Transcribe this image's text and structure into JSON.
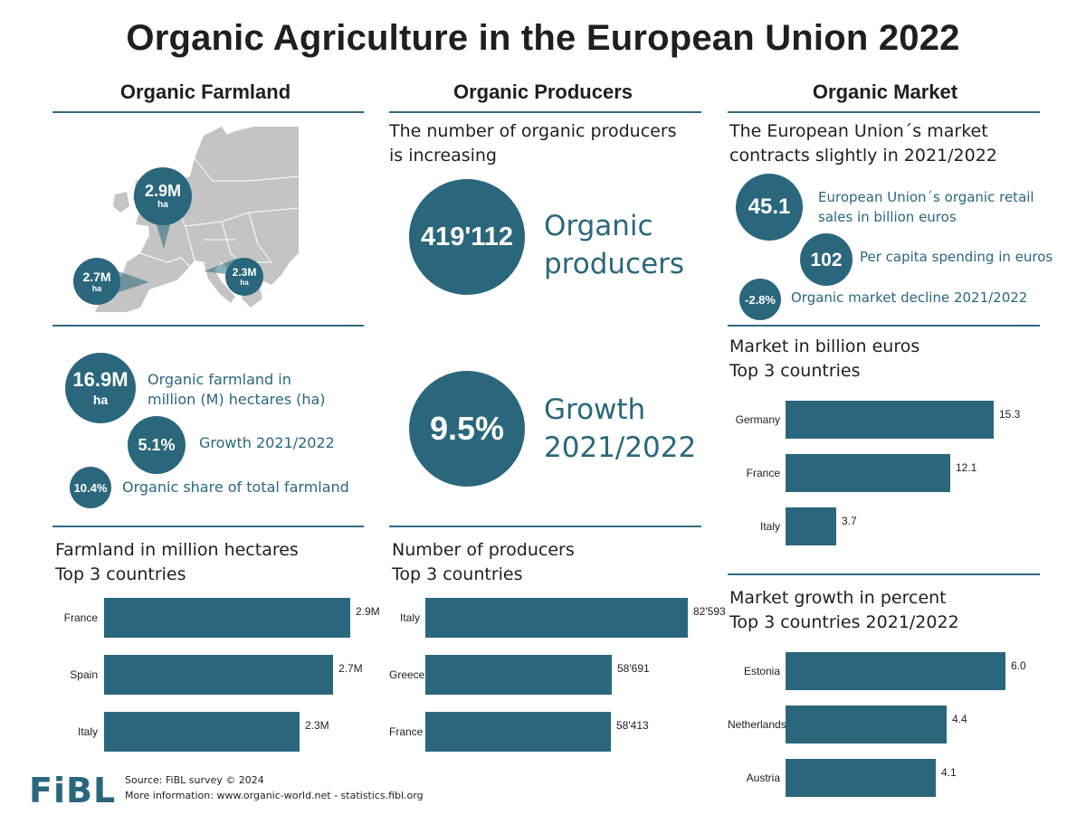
{
  "title": "Organic Agriculture in the European Union 2022",
  "columns": {
    "farmland": "Organic Farmland",
    "producers": "Organic Producers",
    "market": "Organic Market"
  },
  "map": {
    "bubbles": [
      {
        "value": "2.9M",
        "unit": "ha"
      },
      {
        "value": "2.7M",
        "unit": "ha"
      },
      {
        "value": "2.3M",
        "unit": "ha"
      }
    ]
  },
  "farmland_stats": {
    "total_value": "16.9M",
    "total_unit": "ha",
    "total_label": "Organic farmland in million (M) hectares (ha)",
    "total_label_line1": "Organic farmland in",
    "total_label_line2": "million (M) hectares (ha)",
    "growth_value": "5.1%",
    "growth_label": "Growth 2021/2022",
    "share_value": "10.4%",
    "share_label": "Organic share of total farmland"
  },
  "producers_stats": {
    "heading_line1": "The number of organic producers",
    "heading_line2": "is increasing",
    "count_value": "419'112",
    "count_label_line1": "Organic",
    "count_label_line2": "producers",
    "growth_value": "9.5%",
    "growth_label_line1": "Growth",
    "growth_label_line2": "2021/2022"
  },
  "market_stats": {
    "heading_line1": "The European Union´s market",
    "heading_line2": "contracts slightly in 2021/2022",
    "sales_value": "45.1",
    "sales_label_line1": "European Union´s organic retail",
    "sales_label_line2": "sales in billion euros",
    "per_capita_value": "102",
    "per_capita_label": "Per capita spending in euros",
    "decline_value": "-2.8%",
    "decline_label": "Organic market decline 2021/2022"
  },
  "chart_data": [
    {
      "type": "bar",
      "id": "farmland",
      "title_line1": "Farmland in million hectares",
      "title_line2": "Top 3 countries",
      "categories": [
        "France",
        "Spain",
        "Italy"
      ],
      "values": [
        2.9,
        2.7,
        2.3
      ],
      "value_labels": [
        "2.9M",
        "2.7M",
        "2.3M"
      ],
      "xlim": [
        0,
        3.2
      ]
    },
    {
      "type": "bar",
      "id": "producers",
      "title_line1": "Number of producers",
      "title_line2": "Top 3 countries",
      "categories": [
        "Italy",
        "Greece",
        "France"
      ],
      "values": [
        82593,
        58691,
        58413
      ],
      "value_labels": [
        "82'593",
        "58'691",
        "58'413"
      ],
      "xlim": [
        0,
        91000
      ]
    },
    {
      "type": "bar",
      "id": "market",
      "title_line1": "Market in billion euros",
      "title_line2": "Top 3 countries",
      "categories": [
        "Germany",
        "France",
        "Italy"
      ],
      "values": [
        15.3,
        12.1,
        3.7
      ],
      "value_labels": [
        "15.3",
        "12.1",
        "3.7"
      ],
      "xlim": [
        0,
        17.6
      ]
    },
    {
      "type": "bar",
      "id": "growth",
      "title_line1": "Market growth in percent",
      "title_line2": "Top 3 countries 2021/2022",
      "categories": [
        "Estonia",
        "Netherlands",
        "Austria"
      ],
      "values": [
        6.0,
        4.4,
        4.1
      ],
      "value_labels": [
        "6.0",
        "4.4",
        "4.1"
      ],
      "xlim": [
        0,
        6.3
      ]
    }
  ],
  "footer": {
    "logo": "FiBL",
    "source": "Source: FiBL survey © 2024",
    "more_info": "More information: www.organic-world.net - statistics.fibl.org"
  }
}
